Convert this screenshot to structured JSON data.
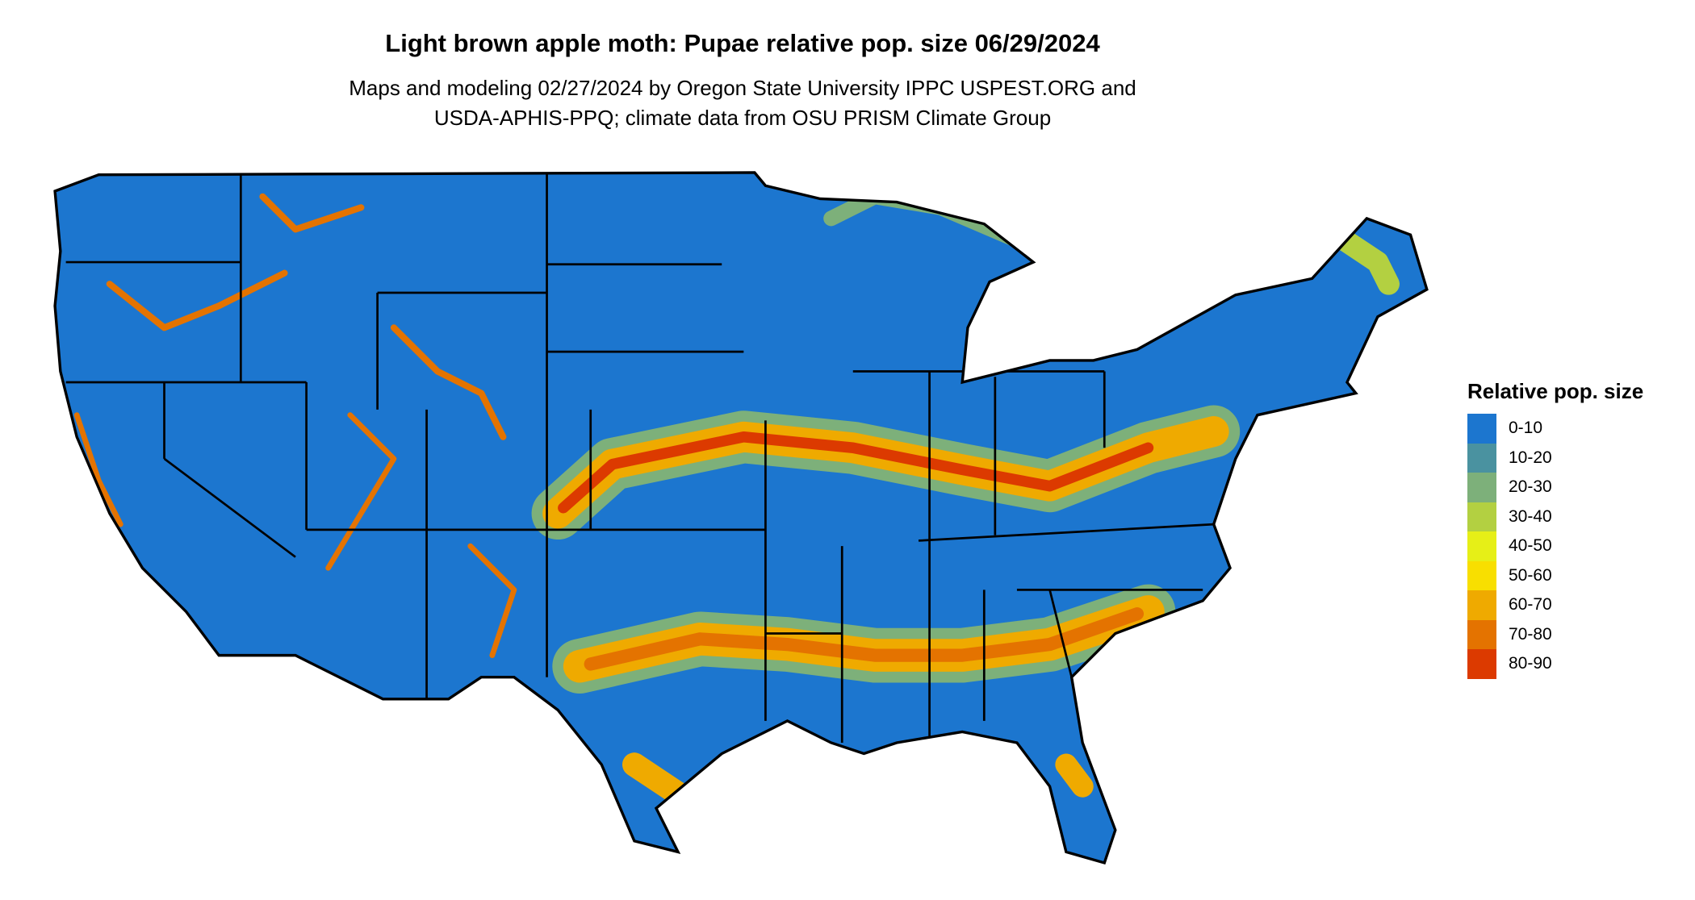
{
  "title": "Light brown apple moth: Pupae relative pop. size 06/29/2024",
  "subtitle_lines": [
    "Maps and modeling 02/27/2024 by Oregon State University IPPC USPEST.ORG and",
    "USDA-APHIS-PPQ; climate data from OSU PRISM Climate Group"
  ],
  "chart_data": {
    "type": "heatmap",
    "region": "Contiguous United States",
    "legend": {
      "title": "Relative pop. size",
      "placement": "right",
      "items": [
        {
          "label": "0-10",
          "color": "#1c76cf"
        },
        {
          "label": "10-20",
          "color": "#4a92a0"
        },
        {
          "label": "20-30",
          "color": "#7db07a"
        },
        {
          "label": "30-40",
          "color": "#b3d041"
        },
        {
          "label": "40-50",
          "color": "#e6ef17"
        },
        {
          "label": "50-60",
          "color": "#f8df00"
        },
        {
          "label": "60-70",
          "color": "#efaa00"
        },
        {
          "label": "70-80",
          "color": "#e47300"
        },
        {
          "label": "80-90",
          "color": "#dc3a00"
        }
      ]
    }
  }
}
